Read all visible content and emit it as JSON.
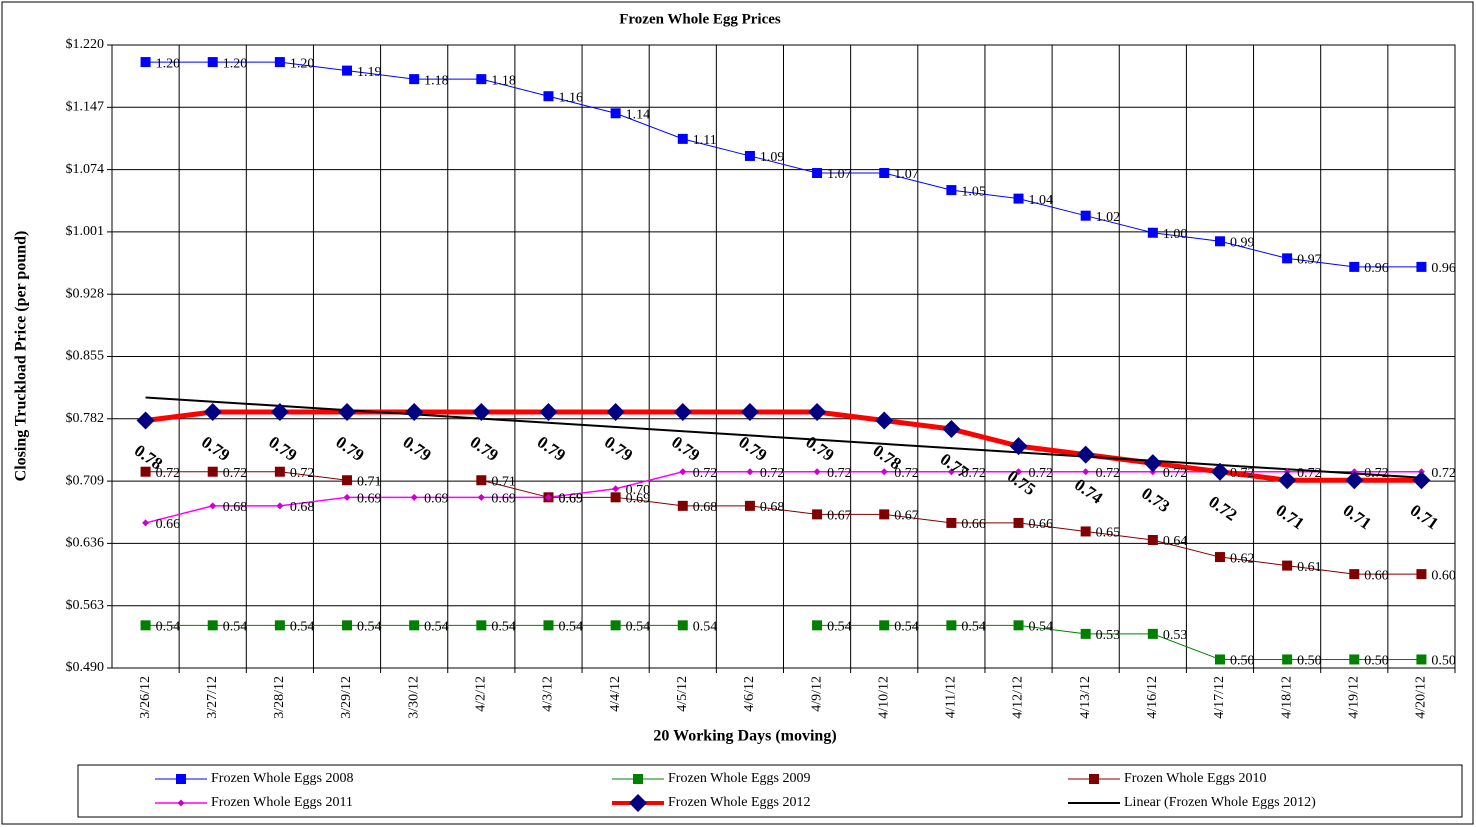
{
  "chart_data": {
    "type": "line",
    "title": "Frozen Whole Egg Prices",
    "x_label": "20 Working Days (moving)",
    "y_label": "Closing Truckload Price (per pound)",
    "categories": [
      "3/26/12",
      "3/27/12",
      "3/28/12",
      "3/29/12",
      "3/30/12",
      "4/2/12",
      "4/3/12",
      "4/4/12",
      "4/5/12",
      "4/6/12",
      "4/9/12",
      "4/10/12",
      "4/11/12",
      "4/12/12",
      "4/13/12",
      "4/16/12",
      "4/17/12",
      "4/18/12",
      "4/19/12",
      "4/20/12"
    ],
    "ylim": [
      0.49,
      1.22
    ],
    "yticks": [
      {
        "value": 0.49,
        "label": "$0.490"
      },
      {
        "value": 0.563,
        "label": "$0.563"
      },
      {
        "value": 0.636,
        "label": "$0.636"
      },
      {
        "value": 0.709,
        "label": "$0.709"
      },
      {
        "value": 0.782,
        "label": "$0.782"
      },
      {
        "value": 0.855,
        "label": "$0.855"
      },
      {
        "value": 0.928,
        "label": "$0.928"
      },
      {
        "value": 1.001,
        "label": "$1.001"
      },
      {
        "value": 1.074,
        "label": "$1.074"
      },
      {
        "value": 1.147,
        "label": "$1.147"
      },
      {
        "value": 1.22,
        "label": "$1.220"
      }
    ],
    "grid": true,
    "series": [
      {
        "name": "Frozen Whole Eggs 2008",
        "color": "#0000ff",
        "marker_color": "#0000ff",
        "marker": "square",
        "line_width": 1,
        "values": [
          1.2,
          1.2,
          1.2,
          1.19,
          1.18,
          1.18,
          1.16,
          1.14,
          1.11,
          1.09,
          1.07,
          1.07,
          1.05,
          1.04,
          1.02,
          1.0,
          0.99,
          0.97,
          0.96,
          0.96
        ],
        "value_labels": [
          "1.20",
          "1.20",
          "1.20",
          "1.19",
          "1.18",
          "1.18",
          "1.16",
          "1.14",
          "1.11",
          "1.09",
          "1.07",
          "1.07",
          "1.05",
          "1.04",
          "1.02",
          "1.00",
          "0.99",
          "0.97",
          "0.96",
          "0.96"
        ]
      },
      {
        "name": "Frozen Whole Eggs 2009",
        "color": "#008000",
        "marker_color": "#008000",
        "marker": "square",
        "line_width": 1,
        "values": [
          0.54,
          0.54,
          0.54,
          0.54,
          0.54,
          0.54,
          0.54,
          0.54,
          0.54,
          null,
          0.54,
          0.54,
          0.54,
          0.54,
          0.53,
          0.53,
          0.5,
          0.5,
          0.5,
          0.5
        ],
        "value_labels": [
          "0.54",
          "0.54",
          "0.54",
          "0.54",
          "0.54",
          "0.54",
          "0.54",
          "0.54",
          "0.54",
          null,
          "0.54",
          "0.54",
          "0.54",
          "0.54",
          "0.53",
          "0.53",
          "0.50",
          "0.50",
          "0.50",
          "0.50"
        ]
      },
      {
        "name": "Frozen Whole Eggs 2010",
        "color": "#800000",
        "marker_color": "#800000",
        "marker": "square",
        "line_width": 1,
        "values": [
          0.72,
          0.72,
          0.72,
          0.71,
          null,
          0.71,
          0.69,
          0.69,
          0.68,
          0.68,
          0.67,
          0.67,
          0.66,
          0.66,
          0.65,
          0.64,
          0.62,
          0.61,
          0.6,
          0.6
        ],
        "value_labels": [
          "0.72",
          "0.72",
          "0.72",
          "0.71",
          null,
          "0.71",
          "0.69",
          "0.69",
          "0.68",
          "0.68",
          "0.67",
          "0.67",
          "0.66",
          "0.66",
          "0.65",
          "0.64",
          "0.62",
          "0.61",
          "0.60",
          "0.60"
        ]
      },
      {
        "name": "Frozen Whole Eggs 2011",
        "color": "#ff00ff",
        "marker_color": "#cc00cc",
        "marker": "small-diamond",
        "line_width": 1.5,
        "values": [
          0.66,
          0.68,
          0.68,
          0.69,
          0.69,
          0.69,
          0.69,
          0.7,
          0.72,
          0.72,
          0.72,
          0.72,
          0.72,
          0.72,
          0.72,
          0.72,
          0.72,
          0.72,
          0.72,
          0.72
        ],
        "value_labels": [
          "0.66",
          "0.68",
          "0.68",
          "0.69",
          "0.69",
          "0.69",
          "0.69",
          "0.70",
          "0.72",
          "0.72",
          "0.72",
          "0.72",
          "0.72",
          "0.72",
          "0.72",
          "0.72",
          "0.72",
          "0.72",
          "0.72",
          "0.72"
        ]
      },
      {
        "name": "Frozen Whole Eggs 2012",
        "color": "#ff0000",
        "marker_color": "#000080",
        "marker": "diamond",
        "line_width": 5,
        "values": [
          0.78,
          0.79,
          0.79,
          0.79,
          0.79,
          0.79,
          0.79,
          0.79,
          0.79,
          0.79,
          0.79,
          0.78,
          0.77,
          0.75,
          0.74,
          0.73,
          0.72,
          0.71,
          0.71,
          0.71
        ]
      }
    ],
    "trendline": {
      "name": "Linear (Frozen Whole Eggs 2012)",
      "color": "#000000",
      "start": 0.807,
      "end": 0.713
    }
  }
}
